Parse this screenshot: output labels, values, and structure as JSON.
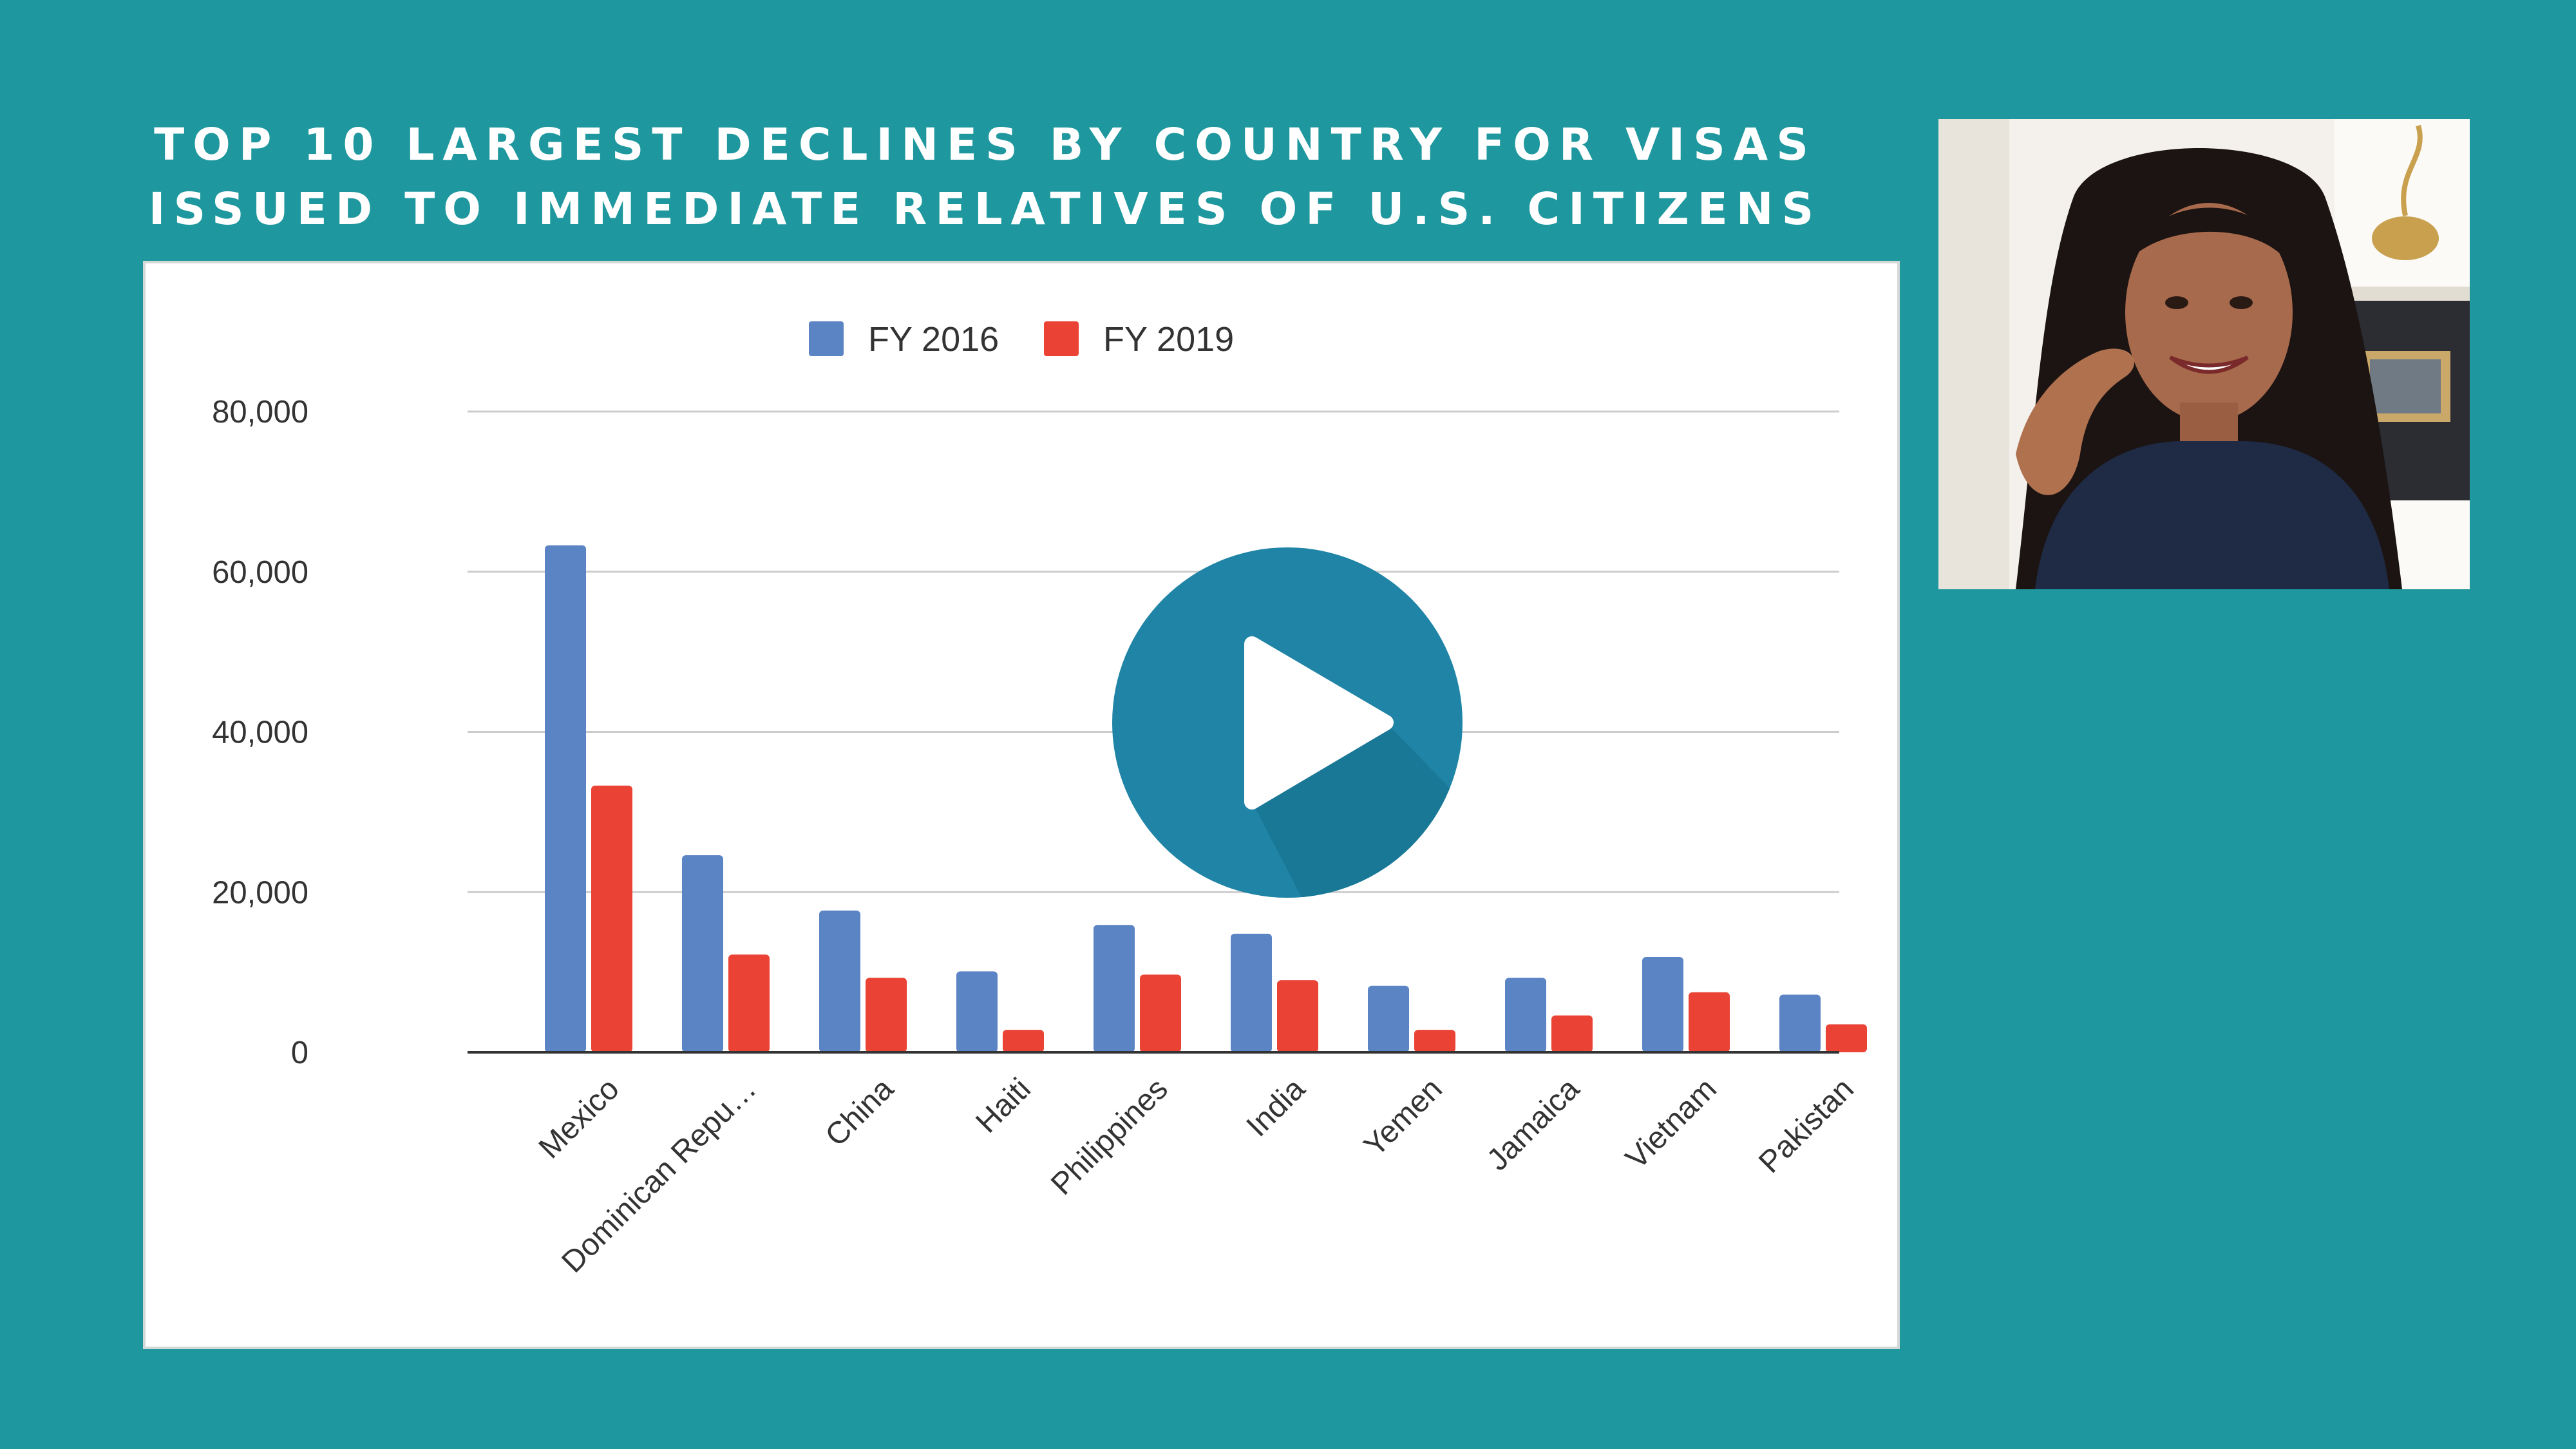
{
  "title": {
    "line1": "TOP 10 LARGEST DECLINES BY COUNTRY FOR VISAS",
    "line2": "ISSUED TO IMMEDIATE RELATIVES OF U.S. CITIZENS"
  },
  "colors": {
    "background": "#1e989e",
    "fy2016": "#5b84c4",
    "fy2019": "#ea4335",
    "play_button": "#1f84a6"
  },
  "chart_data": {
    "type": "bar",
    "title": "TOP 10 LARGEST DECLINES BY COUNTRY FOR VISAS ISSUED TO IMMEDIATE RELATIVES OF U.S. CITIZENS",
    "categories": [
      "Mexico",
      "Dominican Repu…",
      "China",
      "Haiti",
      "Philippines",
      "India",
      "Yemen",
      "Jamaica",
      "Vietnam",
      "Pakistan"
    ],
    "series": [
      {
        "name": "FY 2016",
        "color": "#5b84c4",
        "values": [
          63300,
          24600,
          17700,
          10100,
          15900,
          14800,
          8300,
          9300,
          11900,
          7200
        ]
      },
      {
        "name": "FY 2019",
        "color": "#ea4335",
        "values": [
          33300,
          12200,
          9300,
          2800,
          9700,
          9000,
          2800,
          4600,
          7500,
          3500
        ]
      }
    ],
    "yticks": [
      "0",
      "20,000",
      "40,000",
      "60,000",
      "80,000"
    ],
    "ylim": [
      0,
      80000
    ],
    "grid": true,
    "legend": "top-center"
  },
  "video": {
    "play_icon": "play-icon",
    "webcam": "presenter-webcam"
  }
}
